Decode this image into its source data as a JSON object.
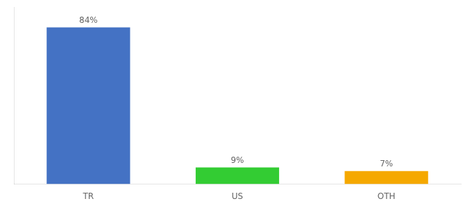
{
  "chart_data": {
    "type": "bar",
    "categories": [
      "TR",
      "US",
      "OTH"
    ],
    "values": [
      84,
      9,
      7
    ],
    "value_labels": [
      "84%",
      "9%",
      "7%"
    ],
    "colors": [
      "#4472c4",
      "#33cc33",
      "#f5a800"
    ],
    "ylim": [
      0,
      95
    ],
    "data_labels": true,
    "tick_labels": "x",
    "grid": false
  }
}
